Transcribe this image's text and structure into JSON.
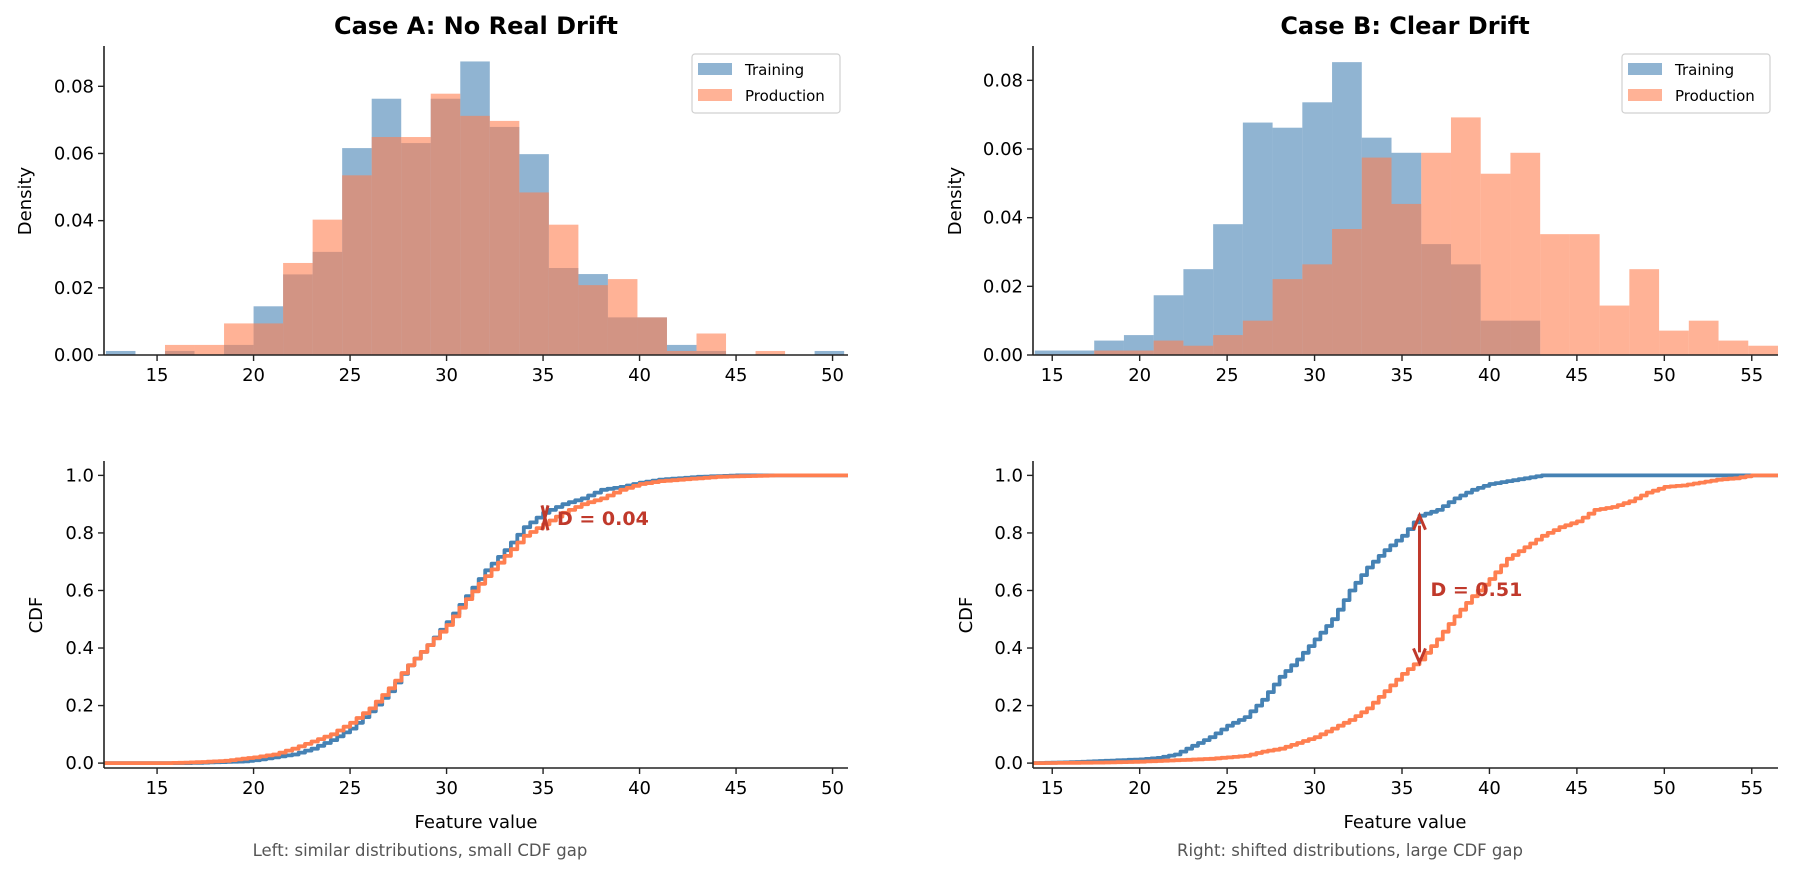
{
  "colors": {
    "training": "#4682B4",
    "production": "#FF7F50",
    "annotation": "#C0392B",
    "caption": "#555555",
    "hist_alpha": 0.6
  },
  "chart_data": [
    {
      "id": "hist-a",
      "type": "bar",
      "subtype": "overlaid-histogram",
      "title": "Case A: No Real Drift",
      "xlabel": "",
      "ylabel": "Density",
      "xlim": [
        12.25,
        50.8
      ],
      "ylim": [
        0,
        0.092
      ],
      "xticks": [
        15,
        20,
        25,
        30,
        35,
        40,
        45,
        50
      ],
      "yticks": [
        0.0,
        0.02,
        0.04,
        0.06,
        0.08
      ],
      "ytick_labels": [
        "0.00",
        "0.02",
        "0.04",
        "0.06",
        "0.08"
      ],
      "legend": {
        "position": "top-right",
        "entries": [
          "Training",
          "Production"
        ]
      },
      "bin_edges": [
        12.35,
        13.88,
        15.41,
        16.94,
        18.47,
        20.0,
        21.53,
        23.06,
        24.59,
        26.12,
        27.65,
        29.18,
        30.71,
        32.24,
        33.77,
        35.3,
        36.83,
        38.36,
        39.89,
        41.42,
        42.95,
        44.48,
        46.01,
        47.54,
        49.07,
        50.6
      ],
      "series": [
        {
          "name": "Training",
          "values": [
            0.0012,
            0,
            0.0012,
            0,
            0.003,
            0.0145,
            0.024,
            0.0307,
            0.0616,
            0.0763,
            0.0631,
            0.0763,
            0.0874,
            0.0679,
            0.0598,
            0.0259,
            0.0241,
            0.0112,
            0.0112,
            0.003,
            0.0012,
            0,
            0,
            0,
            0.0012
          ]
        },
        {
          "name": "Production",
          "values": [
            0,
            0,
            0.003,
            0.003,
            0.0094,
            0.0094,
            0.0274,
            0.0403,
            0.0535,
            0.0649,
            0.0649,
            0.0778,
            0.0712,
            0.0697,
            0.0484,
            0.0388,
            0.0208,
            0.0226,
            0.0112,
            0.0012,
            0.0064,
            0,
            0.0012,
            0,
            0
          ]
        }
      ]
    },
    {
      "id": "hist-b",
      "type": "bar",
      "subtype": "overlaid-histogram",
      "title": "Case B: Clear Drift",
      "xlabel": "",
      "ylabel": "Density",
      "xlim": [
        13.9,
        56.5
      ],
      "ylim": [
        0,
        0.09
      ],
      "xticks": [
        15,
        20,
        25,
        30,
        35,
        40,
        45,
        50,
        55
      ],
      "yticks": [
        0.0,
        0.02,
        0.04,
        0.06,
        0.08
      ],
      "ytick_labels": [
        "0.00",
        "0.02",
        "0.04",
        "0.06",
        "0.08"
      ],
      "legend": {
        "position": "top-right",
        "entries": [
          "Training",
          "Production"
        ]
      },
      "bin_edges": [
        14.0,
        15.7,
        17.4,
        19.1,
        20.8,
        22.5,
        24.2,
        25.9,
        27.6,
        29.3,
        31.0,
        32.7,
        34.4,
        36.1,
        37.8,
        39.5,
        41.2,
        42.9,
        44.6,
        46.3,
        48.0,
        49.7,
        51.4,
        53.1,
        54.8,
        56.5
      ],
      "series": [
        {
          "name": "Training",
          "values": [
            0.0013,
            0.0013,
            0.0042,
            0.0058,
            0.0174,
            0.025,
            0.0381,
            0.0677,
            0.0662,
            0.0736,
            0.0853,
            0.0633,
            0.0589,
            0.0323,
            0.0264,
            0.01,
            0.01,
            0,
            0,
            0,
            0,
            0,
            0,
            0,
            0
          ]
        },
        {
          "name": "Production",
          "values": [
            0,
            0,
            0.0013,
            0.0013,
            0.0042,
            0.0027,
            0.0058,
            0.01,
            0.0221,
            0.0264,
            0.0367,
            0.0575,
            0.044,
            0.0589,
            0.0692,
            0.0528,
            0.0589,
            0.0352,
            0.0352,
            0.0144,
            0.025,
            0.0071,
            0.01,
            0.0042,
            0.0027
          ]
        }
      ]
    },
    {
      "id": "cdf-a",
      "type": "line",
      "subtype": "empirical-cdf",
      "title": "",
      "xlabel": "Feature value",
      "ylabel": "CDF",
      "xlim": [
        12.25,
        50.8
      ],
      "ylim": [
        -0.017,
        1.05
      ],
      "xticks": [
        15,
        20,
        25,
        30,
        35,
        40,
        45,
        50
      ],
      "yticks": [
        0.0,
        0.2,
        0.4,
        0.6,
        0.8,
        1.0
      ],
      "ytick_labels": [
        "0.0",
        "0.2",
        "0.4",
        "0.6",
        "0.8",
        "1.0"
      ],
      "caption": "Left: similar distributions, small CDF gap",
      "series": [
        {
          "name": "Training",
          "x": [
            12.25,
            16.5,
            18,
            19.5,
            20,
            21,
            22,
            23,
            24,
            25,
            26,
            27,
            28,
            29,
            30,
            31,
            32,
            33,
            34,
            35,
            36,
            37,
            38,
            39,
            40,
            41,
            42,
            43,
            45,
            50.8
          ],
          "y": [
            0,
            0,
            0.003,
            0.006,
            0.01,
            0.02,
            0.03,
            0.05,
            0.08,
            0.12,
            0.18,
            0.25,
            0.34,
            0.41,
            0.49,
            0.58,
            0.67,
            0.74,
            0.82,
            0.87,
            0.9,
            0.92,
            0.95,
            0.96,
            0.975,
            0.985,
            0.99,
            0.995,
            1.0,
            1.0
          ]
        },
        {
          "name": "Production",
          "x": [
            12.25,
            15.5,
            17,
            18.5,
            20,
            21,
            22,
            23,
            24,
            25,
            26,
            27,
            28,
            29,
            30,
            31,
            32,
            33,
            34,
            35,
            36,
            37,
            38,
            39,
            40,
            41,
            42,
            44,
            47,
            50.8
          ],
          "y": [
            0,
            0,
            0.003,
            0.008,
            0.02,
            0.03,
            0.05,
            0.075,
            0.1,
            0.14,
            0.19,
            0.26,
            0.34,
            0.41,
            0.48,
            0.57,
            0.65,
            0.72,
            0.79,
            0.83,
            0.87,
            0.9,
            0.92,
            0.95,
            0.97,
            0.98,
            0.985,
            0.995,
            1.0,
            1.0
          ]
        }
      ],
      "annotation": {
        "type": "gap-marker",
        "x": 35.1,
        "y_top": 0.875,
        "y_bottom": 0.83,
        "label": "D = 0.04"
      }
    },
    {
      "id": "cdf-b",
      "type": "line",
      "subtype": "empirical-cdf",
      "title": "",
      "xlabel": "Feature value",
      "ylabel": "CDF",
      "xlim": [
        13.9,
        56.5
      ],
      "ylim": [
        -0.017,
        1.05
      ],
      "xticks": [
        15,
        20,
        25,
        30,
        35,
        40,
        45,
        50,
        55
      ],
      "yticks": [
        0.0,
        0.2,
        0.4,
        0.6,
        0.8,
        1.0
      ],
      "ytick_labels": [
        "0.0",
        "0.2",
        "0.4",
        "0.6",
        "0.8",
        "1.0"
      ],
      "caption": "Right: shifted distributions, large CDF gap",
      "series": [
        {
          "name": "Training",
          "x": [
            13.9,
            16,
            18,
            20,
            21,
            22,
            23,
            24,
            25,
            26,
            27,
            28,
            29,
            30,
            31,
            32,
            33,
            34,
            35,
            36,
            37,
            38,
            39,
            40,
            41,
            42,
            43,
            56.5
          ],
          "y": [
            0,
            0.003,
            0.008,
            0.013,
            0.018,
            0.03,
            0.06,
            0.09,
            0.13,
            0.16,
            0.22,
            0.3,
            0.36,
            0.43,
            0.5,
            0.6,
            0.68,
            0.74,
            0.79,
            0.86,
            0.88,
            0.92,
            0.95,
            0.97,
            0.98,
            0.99,
            1.0,
            1.0
          ]
        },
        {
          "name": "Production",
          "x": [
            13.9,
            18,
            20,
            22,
            24,
            25,
            26,
            27,
            28,
            29,
            30,
            31,
            32,
            33,
            34,
            35,
            36,
            37,
            38,
            39,
            40,
            41,
            42,
            43,
            44,
            45,
            46,
            47,
            48,
            49,
            50,
            51,
            52,
            53,
            54,
            55,
            56.5
          ],
          "y": [
            0,
            0.002,
            0.005,
            0.01,
            0.015,
            0.02,
            0.025,
            0.04,
            0.05,
            0.07,
            0.09,
            0.12,
            0.15,
            0.19,
            0.25,
            0.31,
            0.36,
            0.43,
            0.51,
            0.58,
            0.64,
            0.71,
            0.75,
            0.79,
            0.82,
            0.84,
            0.88,
            0.89,
            0.91,
            0.94,
            0.96,
            0.965,
            0.975,
            0.985,
            0.99,
            1.0,
            1.0
          ]
        }
      ],
      "annotation": {
        "type": "double-arrow",
        "x": 36.0,
        "y_top": 0.86,
        "y_bottom": 0.35,
        "label": "D = 0.51"
      }
    }
  ]
}
